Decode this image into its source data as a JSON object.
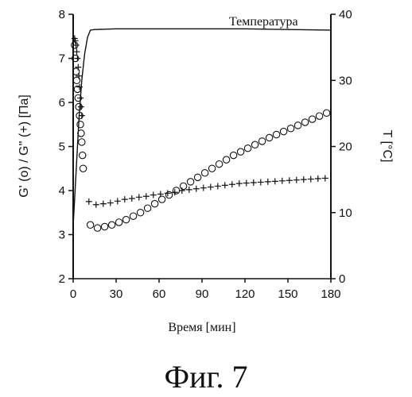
{
  "chart_data": {
    "type": "line",
    "xlabel": "Время [мин]",
    "ylabel_left": "G' (o)  /  G'' (+) [Па]",
    "ylabel_right": "T [°C]",
    "x_ticks": [
      0,
      30,
      60,
      90,
      120,
      150,
      180
    ],
    "y_left_ticks": [
      2,
      3,
      4,
      5,
      6,
      7,
      8
    ],
    "y_right_ticks": [
      0,
      10,
      20,
      30,
      40
    ],
    "xlim": [
      0,
      180
    ],
    "ylim_left": [
      2,
      8
    ],
    "ylim_right": [
      0,
      40
    ],
    "grid": false,
    "series": [
      {
        "name": "Температура",
        "axis": "right",
        "style": "line",
        "x": [
          0,
          2,
          4,
          6,
          8,
          10,
          12,
          15,
          30,
          60,
          90,
          120,
          150,
          180
        ],
        "y": [
          8,
          16,
          24,
          30,
          34,
          36.5,
          37.6,
          37.7,
          37.8,
          37.8,
          37.8,
          37.8,
          37.7,
          37.6
        ]
      },
      {
        "name": "G' (o)",
        "axis": "left",
        "style": "circle",
        "x": [
          1,
          1.5,
          2,
          2.5,
          3,
          3.5,
          4,
          4.5,
          5,
          5.5,
          6,
          6.5,
          7,
          12,
          17,
          22,
          27,
          32,
          37,
          42,
          47,
          52,
          57,
          62,
          67,
          72,
          77,
          82,
          87,
          92,
          97,
          102,
          107,
          112,
          117,
          122,
          127,
          132,
          137,
          142,
          147,
          152,
          157,
          162,
          167,
          172,
          177
        ],
        "y": [
          7.3,
          7.0,
          6.7,
          6.5,
          6.3,
          6.1,
          5.9,
          5.7,
          5.5,
          5.3,
          5.1,
          4.8,
          4.5,
          3.22,
          3.15,
          3.18,
          3.22,
          3.28,
          3.34,
          3.42,
          3.5,
          3.6,
          3.7,
          3.8,
          3.9,
          4.0,
          4.1,
          4.2,
          4.3,
          4.4,
          4.5,
          4.6,
          4.7,
          4.8,
          4.88,
          4.96,
          5.04,
          5.12,
          5.2,
          5.27,
          5.34,
          5.41,
          5.48,
          5.55,
          5.62,
          5.69,
          5.76
        ]
      },
      {
        "name": "G'' (+)",
        "axis": "left",
        "style": "plus",
        "x": [
          1,
          1.5,
          2,
          2.5,
          3,
          3.5,
          4,
          4.5,
          5,
          5.5,
          6,
          11,
          16,
          21,
          26,
          31,
          36,
          41,
          46,
          51,
          56,
          61,
          66,
          71,
          76,
          81,
          86,
          91,
          96,
          101,
          106,
          111,
          116,
          121,
          126,
          131,
          136,
          141,
          146,
          151,
          156,
          161,
          166,
          171,
          176
        ],
        "y": [
          7.45,
          7.4,
          7.3,
          7.15,
          7.0,
          6.8,
          6.6,
          6.35,
          6.1,
          5.9,
          5.7,
          3.75,
          3.68,
          3.7,
          3.72,
          3.76,
          3.8,
          3.82,
          3.85,
          3.87,
          3.9,
          3.92,
          3.94,
          3.96,
          4.0,
          4.02,
          4.04,
          4.06,
          4.08,
          4.1,
          4.12,
          4.14,
          4.16,
          4.17,
          4.18,
          4.19,
          4.2,
          4.21,
          4.22,
          4.23,
          4.24,
          4.25,
          4.26,
          4.27,
          4.28
        ]
      }
    ]
  },
  "caption": "Фиг. 7"
}
